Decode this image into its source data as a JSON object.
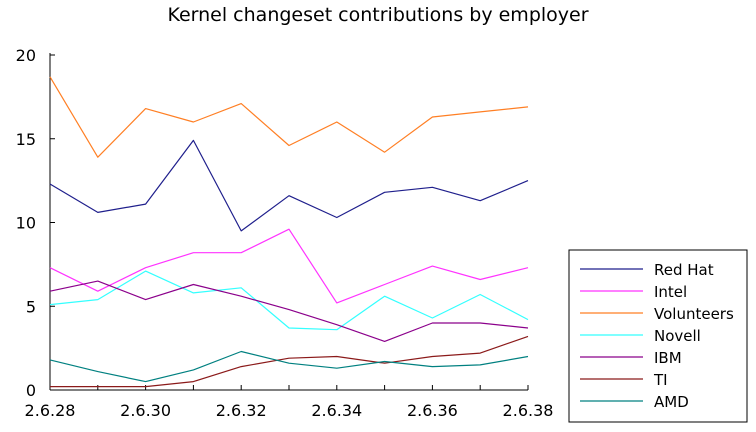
{
  "chart_data": {
    "type": "line",
    "title": "Kernel changeset contributions by employer",
    "xlabel": "",
    "ylabel": "",
    "x": [
      "2.6.28",
      "2.6.29",
      "2.6.30",
      "2.6.31",
      "2.6.32",
      "2.6.33",
      "2.6.34",
      "2.6.35",
      "2.6.36",
      "2.6.37",
      "2.6.38"
    ],
    "x_tick_labels": [
      "2.6.28",
      "2.6.30",
      "2.6.32",
      "2.6.34",
      "2.6.36",
      "2.6.38"
    ],
    "y_tick_labels": [
      "0",
      "5",
      "10",
      "15",
      "20"
    ],
    "ylim": [
      0,
      20
    ],
    "grid": false,
    "legend_position": "bottom-right",
    "series": [
      {
        "name": "Red Hat",
        "color": "#1f1f8c",
        "values": [
          12.3,
          10.6,
          11.1,
          14.9,
          9.5,
          11.6,
          10.3,
          11.8,
          12.1,
          11.3,
          12.5
        ]
      },
      {
        "name": "Intel",
        "color": "#ff33ff",
        "values": [
          7.3,
          5.9,
          7.3,
          8.2,
          8.2,
          9.6,
          5.2,
          6.3,
          7.4,
          6.6,
          7.3
        ]
      },
      {
        "name": "Volunteers",
        "color": "#ff7f24",
        "values": [
          18.7,
          13.9,
          16.8,
          16.0,
          17.1,
          14.6,
          16.0,
          14.2,
          16.3,
          16.6,
          16.9
        ]
      },
      {
        "name": "Novell",
        "color": "#33ffff",
        "values": [
          5.1,
          5.4,
          7.1,
          5.8,
          6.1,
          3.7,
          3.6,
          5.6,
          4.3,
          5.7,
          4.2
        ]
      },
      {
        "name": "IBM",
        "color": "#8b008b",
        "values": [
          5.9,
          6.5,
          5.4,
          6.3,
          5.6,
          4.8,
          3.9,
          2.9,
          4.0,
          4.0,
          3.7
        ]
      },
      {
        "name": "TI",
        "color": "#8b1a1a",
        "values": [
          0.2,
          0.2,
          0.2,
          0.5,
          1.4,
          1.9,
          2.0,
          1.6,
          2.0,
          2.2,
          3.2
        ]
      },
      {
        "name": "AMD",
        "color": "#008080",
        "values": [
          1.8,
          1.1,
          0.5,
          1.2,
          2.3,
          1.6,
          1.3,
          1.7,
          1.4,
          1.5,
          2.0
        ]
      }
    ]
  }
}
